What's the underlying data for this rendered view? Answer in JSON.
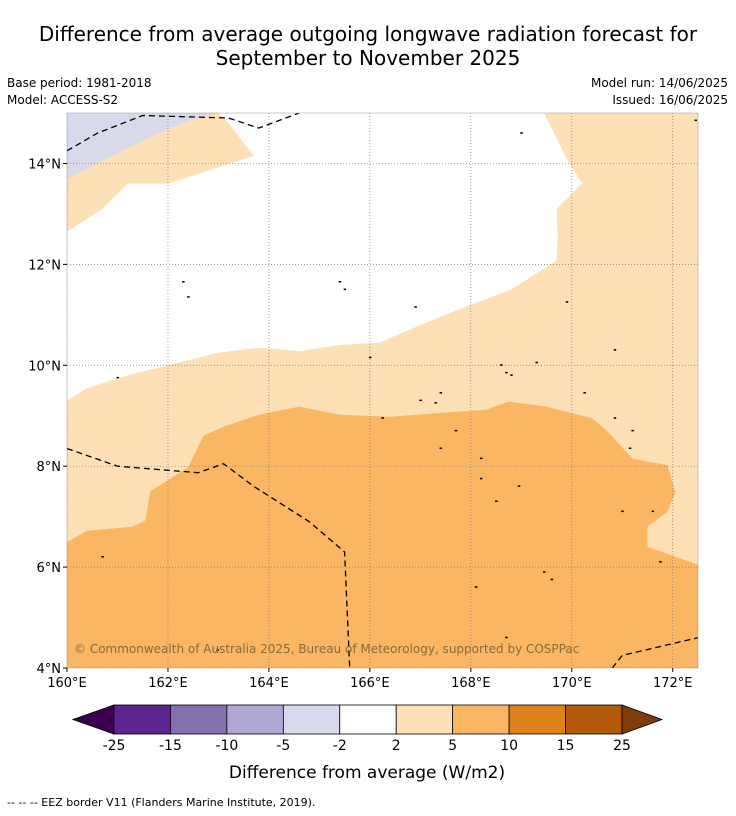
{
  "header": {
    "title_line1": "Difference from average outgoing longwave radiation forecast for",
    "title_line2": "September to November 2025",
    "base_period": "Base period: 1981-2018",
    "model": "Model: ACCESS-S2",
    "model_run": "Model run: 14/06/2025",
    "issued": "Issued: 16/06/2025"
  },
  "copyright": "© Commonwealth of Australia 2025, Bureau of Meteorology, supported by COSPPac",
  "footnote": "--  --  -- EEZ border V11 (Flanders Marine Institute, 2019).",
  "colors": {
    "d_-15_-10": "#8470b0",
    "d_-5_-2": "#d9d9ec",
    "d_-2_2": "#ffffff",
    "d_2_5": "#fde0b5",
    "d_5_10": "#fbb663",
    "d_lt_-25": "#3b0050",
    "d_-25_-15": "#5e2590",
    "d_-10_-5": "#b1a7d3",
    "d_10_15": "#e0821a",
    "d_15_25": "#b35806",
    "d_gt_25": "#7f3b08"
  },
  "chart_data": {
    "type": "heatmap",
    "map_type": "filled contour map",
    "x_axis": {
      "range": [
        160,
        172.5
      ],
      "ticks": [
        160,
        162,
        164,
        166,
        168,
        170,
        172
      ],
      "tick_labels": [
        "160°E",
        "162°E",
        "164°E",
        "166°E",
        "168°E",
        "170°E",
        "172°E"
      ]
    },
    "y_axis": {
      "range": [
        4,
        15
      ],
      "ticks": [
        4,
        6,
        8,
        10,
        12,
        14
      ],
      "tick_labels": [
        "4°N",
        "6°N",
        "8°N",
        "10°N",
        "12°N",
        "14°N"
      ]
    },
    "grid": true,
    "colorbar": {
      "label": "Difference from average (W/m2)",
      "boundaries": [
        -25,
        -15,
        -10,
        -5,
        -2,
        2,
        5,
        10,
        15,
        25
      ],
      "tick_labels": [
        "-25",
        "-15",
        "-10",
        "-5",
        "-2",
        "2",
        "5",
        "10",
        "15",
        "25"
      ],
      "extend": "both"
    },
    "regions": [
      {
        "category": "-5 to -2",
        "color": "#d9d9ec",
        "outline": [
          [
            160,
            13.7
          ],
          [
            160.8,
            14.1
          ],
          [
            161.6,
            14.5
          ],
          [
            162.4,
            14.85
          ],
          [
            163.0,
            15.0
          ],
          [
            160,
            15.0
          ]
        ]
      },
      {
        "category": "-2 to 2",
        "color": "#ffffff",
        "outline": [
          [
            160,
            9.3
          ],
          [
            160.4,
            9.55
          ],
          [
            161.2,
            9.8
          ],
          [
            162.0,
            10.0
          ],
          [
            163.0,
            10.25
          ],
          [
            163.8,
            10.35
          ],
          [
            164.6,
            10.28
          ],
          [
            165.4,
            10.4
          ],
          [
            166.2,
            10.45
          ],
          [
            167.0,
            10.8
          ],
          [
            168.0,
            11.2
          ],
          [
            168.8,
            11.5
          ],
          [
            169.5,
            11.95
          ],
          [
            169.7,
            12.08
          ],
          [
            169.72,
            12.5
          ],
          [
            169.7,
            13.1
          ],
          [
            170.2,
            13.6
          ],
          [
            169.9,
            14.1
          ],
          [
            169.6,
            14.7
          ],
          [
            169.45,
            15.0
          ],
          [
            163.0,
            15.0
          ],
          [
            163.2,
            14.8
          ],
          [
            163.7,
            14.15
          ],
          [
            162.0,
            13.6
          ],
          [
            161.2,
            13.6
          ],
          [
            160.7,
            13.1
          ],
          [
            160,
            12.65
          ]
        ]
      },
      {
        "category": "2 to 5",
        "color": "#fde0b5",
        "outline": [
          [
            160,
            6.5
          ],
          [
            160.4,
            6.72
          ],
          [
            161.3,
            6.8
          ],
          [
            161.55,
            6.92
          ],
          [
            161.65,
            7.5
          ],
          [
            162.4,
            7.98
          ],
          [
            162.7,
            8.6
          ],
          [
            163.1,
            8.78
          ],
          [
            163.8,
            9.02
          ],
          [
            164.6,
            9.18
          ],
          [
            165.4,
            9.02
          ],
          [
            166.4,
            8.98
          ],
          [
            167.3,
            9.05
          ],
          [
            168.3,
            9.12
          ],
          [
            168.75,
            9.28
          ],
          [
            169.5,
            9.18
          ],
          [
            170.4,
            8.95
          ],
          [
            170.7,
            8.7
          ],
          [
            171.2,
            8.15
          ],
          [
            171.9,
            8.02
          ],
          [
            172.05,
            7.48
          ],
          [
            171.9,
            7.1
          ],
          [
            171.5,
            6.8
          ],
          [
            171.5,
            6.4
          ],
          [
            172.5,
            6.05
          ],
          [
            172.5,
            15.0
          ],
          [
            160,
            15.0
          ]
        ]
      }
    ],
    "eez_borders": [
      [
        [
          160,
          8.35
        ],
        [
          161.0,
          8.0
        ],
        [
          162.6,
          7.87
        ],
        [
          163.1,
          8.05
        ],
        [
          163.7,
          7.6
        ],
        [
          164.8,
          6.9
        ],
        [
          165.5,
          6.3
        ],
        [
          165.6,
          4.0
        ]
      ],
      [
        [
          160,
          14.25
        ],
        [
          160.6,
          14.6
        ],
        [
          161.5,
          14.95
        ],
        [
          163.2,
          14.9
        ],
        [
          163.8,
          14.7
        ],
        [
          164.6,
          15.0
        ]
      ],
      [
        [
          170.8,
          4.0
        ],
        [
          171.0,
          4.25
        ],
        [
          172.5,
          4.6
        ]
      ]
    ],
    "islands": [
      [
        162.98,
        4.35
      ],
      [
        160.7,
        6.2
      ],
      [
        162.3,
        11.65
      ],
      [
        162.4,
        11.35
      ],
      [
        165.4,
        11.65
      ],
      [
        165.5,
        11.5
      ],
      [
        166.9,
        11.15
      ],
      [
        169.9,
        11.25
      ],
      [
        169.0,
        14.6
      ],
      [
        172.45,
        14.85
      ],
      [
        161.0,
        9.75
      ],
      [
        166.0,
        10.15
      ],
      [
        168.6,
        10.0
      ],
      [
        169.3,
        10.05
      ],
      [
        168.7,
        9.85
      ],
      [
        168.8,
        9.8
      ],
      [
        170.25,
        9.45
      ],
      [
        167.4,
        9.45
      ],
      [
        167.3,
        9.25
      ],
      [
        167.0,
        9.3
      ],
      [
        166.25,
        8.95
      ],
      [
        167.7,
        8.7
      ],
      [
        170.85,
        10.3
      ],
      [
        170.85,
        8.95
      ],
      [
        171.2,
        8.7
      ],
      [
        171.15,
        8.35
      ],
      [
        167.4,
        8.35
      ],
      [
        168.2,
        8.15
      ],
      [
        168.2,
        7.75
      ],
      [
        168.95,
        7.6
      ],
      [
        168.5,
        7.3
      ],
      [
        171.0,
        7.1
      ],
      [
        171.6,
        7.1
      ],
      [
        171.75,
        6.1
      ],
      [
        168.1,
        5.6
      ],
      [
        169.45,
        5.9
      ],
      [
        169.6,
        5.75
      ],
      [
        168.7,
        4.6
      ]
    ]
  }
}
